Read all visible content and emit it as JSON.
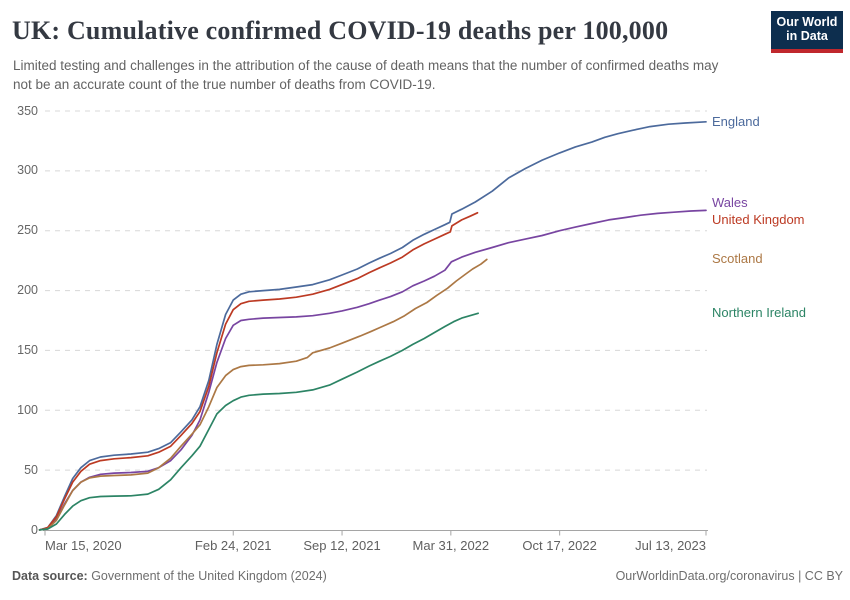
{
  "header": {
    "title": "UK: Cumulative confirmed COVID-19 deaths per 100,000",
    "subtitle": "Limited testing and challenges in the attribution of the cause of death means that the number of confirmed deaths may not be an accurate count of the true number of deaths from COVID-19.",
    "logo": {
      "line1": "Our World",
      "line2": "in Data"
    }
  },
  "footer": {
    "source_label": "Data source:",
    "source_value": " Government of the United Kingdom (2024)",
    "link": "OurWorldinData.org/coronavirus",
    "separator": " | ",
    "license": "CC BY"
  },
  "colors": {
    "logo_bg": "#0d2e4e",
    "logo_bar": "#c0282d",
    "grid": "#d8d8d8",
    "axis": "#a5a5a5",
    "tick_text": "#666666"
  },
  "chart_data": {
    "type": "line",
    "title": "UK: Cumulative confirmed COVID-19 deaths per 100,000",
    "xlabel": "",
    "ylabel": "",
    "ylim": [
      0,
      350
    ],
    "yticks": [
      0,
      50,
      100,
      150,
      200,
      250,
      300,
      350
    ],
    "grid": "horizontal-dashed",
    "legend_position": "right-end-labels",
    "x_range": [
      "2020-03-15",
      "2023-07-13"
    ],
    "xticks": [
      {
        "date": "2020-03-15",
        "label": "Mar 15, 2020"
      },
      {
        "date": "2021-02-24",
        "label": "Feb 24, 2021"
      },
      {
        "date": "2021-09-12",
        "label": "Sep 12, 2021"
      },
      {
        "date": "2022-03-31",
        "label": "Mar 31, 2022"
      },
      {
        "date": "2022-10-17",
        "label": "Oct 17, 2022"
      },
      {
        "date": "2023-07-13",
        "label": "Jul 13, 2023"
      }
    ],
    "series": [
      {
        "name": "England",
        "color": "#4C6A9C",
        "points": [
          [
            "2020-03-05",
            0.1
          ],
          [
            "2020-03-20",
            2
          ],
          [
            "2020-04-05",
            12
          ],
          [
            "2020-04-20",
            28
          ],
          [
            "2020-05-05",
            43
          ],
          [
            "2020-05-20",
            52
          ],
          [
            "2020-06-05",
            58
          ],
          [
            "2020-06-25",
            61
          ],
          [
            "2020-07-20",
            62.5
          ],
          [
            "2020-08-20",
            63.5
          ],
          [
            "2020-09-20",
            65
          ],
          [
            "2020-10-10",
            68
          ],
          [
            "2020-11-01",
            73
          ],
          [
            "2020-11-20",
            82
          ],
          [
            "2020-12-10",
            92
          ],
          [
            "2020-12-25",
            103
          ],
          [
            "2021-01-10",
            125
          ],
          [
            "2021-01-25",
            155
          ],
          [
            "2021-02-10",
            180
          ],
          [
            "2021-02-24",
            192
          ],
          [
            "2021-03-10",
            197
          ],
          [
            "2021-03-25",
            199
          ],
          [
            "2021-04-20",
            200
          ],
          [
            "2021-05-20",
            201
          ],
          [
            "2021-06-20",
            203
          ],
          [
            "2021-07-20",
            205
          ],
          [
            "2021-08-20",
            209
          ],
          [
            "2021-09-12",
            213
          ],
          [
            "2021-10-10",
            218
          ],
          [
            "2021-11-01",
            223
          ],
          [
            "2021-11-20",
            227
          ],
          [
            "2021-12-10",
            231
          ],
          [
            "2022-01-01",
            236
          ],
          [
            "2022-01-20",
            242
          ],
          [
            "2022-02-10",
            247
          ],
          [
            "2022-03-01",
            251
          ],
          [
            "2022-03-20",
            255
          ],
          [
            "2022-03-29",
            257
          ],
          [
            "2022-04-02",
            264
          ],
          [
            "2022-04-20",
            268
          ],
          [
            "2022-05-15",
            274
          ],
          [
            "2022-06-15",
            283
          ],
          [
            "2022-07-15",
            294
          ],
          [
            "2022-08-15",
            302
          ],
          [
            "2022-09-15",
            309
          ],
          [
            "2022-10-17",
            315
          ],
          [
            "2022-11-15",
            320
          ],
          [
            "2022-12-15",
            324
          ],
          [
            "2023-01-08",
            328
          ],
          [
            "2023-02-01",
            331
          ],
          [
            "2023-03-01",
            334
          ],
          [
            "2023-04-01",
            337
          ],
          [
            "2023-05-05",
            339
          ],
          [
            "2023-06-05",
            340
          ],
          [
            "2023-07-13",
            341
          ]
        ]
      },
      {
        "name": "Wales",
        "color": "#7845A1",
        "points": [
          [
            "2020-03-05",
            0.1
          ],
          [
            "2020-03-20",
            1.5
          ],
          [
            "2020-04-05",
            9
          ],
          [
            "2020-04-20",
            22
          ],
          [
            "2020-05-05",
            33
          ],
          [
            "2020-05-20",
            40
          ],
          [
            "2020-06-05",
            44
          ],
          [
            "2020-06-25",
            46.5
          ],
          [
            "2020-07-20",
            47.5
          ],
          [
            "2020-08-20",
            48
          ],
          [
            "2020-09-20",
            49
          ],
          [
            "2020-10-10",
            52
          ],
          [
            "2020-11-01",
            58
          ],
          [
            "2020-11-20",
            67
          ],
          [
            "2020-12-10",
            79
          ],
          [
            "2020-12-25",
            92
          ],
          [
            "2021-01-10",
            115
          ],
          [
            "2021-01-25",
            140
          ],
          [
            "2021-02-10",
            160
          ],
          [
            "2021-02-24",
            171
          ],
          [
            "2021-03-10",
            175
          ],
          [
            "2021-03-25",
            176
          ],
          [
            "2021-04-20",
            177
          ],
          [
            "2021-05-20",
            177.5
          ],
          [
            "2021-06-20",
            178
          ],
          [
            "2021-07-20",
            179
          ],
          [
            "2021-08-20",
            181
          ],
          [
            "2021-09-12",
            183
          ],
          [
            "2021-10-10",
            186
          ],
          [
            "2021-11-01",
            189
          ],
          [
            "2021-11-20",
            192
          ],
          [
            "2021-12-10",
            195
          ],
          [
            "2022-01-01",
            199
          ],
          [
            "2022-01-20",
            204
          ],
          [
            "2022-02-10",
            208
          ],
          [
            "2022-03-01",
            212
          ],
          [
            "2022-03-20",
            217
          ],
          [
            "2022-04-01",
            224
          ],
          [
            "2022-04-20",
            228
          ],
          [
            "2022-05-15",
            232
          ],
          [
            "2022-06-15",
            236
          ],
          [
            "2022-07-15",
            240
          ],
          [
            "2022-08-15",
            243
          ],
          [
            "2022-09-15",
            246
          ],
          [
            "2022-10-17",
            250
          ],
          [
            "2022-11-15",
            253
          ],
          [
            "2022-12-15",
            256
          ],
          [
            "2023-01-15",
            259
          ],
          [
            "2023-02-15",
            261
          ],
          [
            "2023-03-15",
            263
          ],
          [
            "2023-04-15",
            264.5
          ],
          [
            "2023-05-15",
            265.5
          ],
          [
            "2023-06-15",
            266.5
          ],
          [
            "2023-07-13",
            267
          ]
        ]
      },
      {
        "name": "United Kingdom",
        "color": "#BC3A23",
        "points": [
          [
            "2020-03-05",
            0.1
          ],
          [
            "2020-03-20",
            2
          ],
          [
            "2020-04-05",
            11
          ],
          [
            "2020-04-20",
            26
          ],
          [
            "2020-05-05",
            40
          ],
          [
            "2020-05-20",
            49
          ],
          [
            "2020-06-05",
            55
          ],
          [
            "2020-06-25",
            58
          ],
          [
            "2020-07-20",
            59.5
          ],
          [
            "2020-08-20",
            60.5
          ],
          [
            "2020-09-20",
            62
          ],
          [
            "2020-10-10",
            65
          ],
          [
            "2020-11-01",
            70
          ],
          [
            "2020-11-20",
            79
          ],
          [
            "2020-12-10",
            89
          ],
          [
            "2020-12-25",
            99
          ],
          [
            "2021-01-10",
            120
          ],
          [
            "2021-01-25",
            148
          ],
          [
            "2021-02-10",
            172
          ],
          [
            "2021-02-24",
            184
          ],
          [
            "2021-03-10",
            189
          ],
          [
            "2021-03-25",
            191
          ],
          [
            "2021-04-20",
            192
          ],
          [
            "2021-05-20",
            193
          ],
          [
            "2021-06-20",
            194.5
          ],
          [
            "2021-07-20",
            197
          ],
          [
            "2021-08-20",
            201
          ],
          [
            "2021-09-12",
            205
          ],
          [
            "2021-10-10",
            210
          ],
          [
            "2021-11-01",
            215
          ],
          [
            "2021-11-20",
            219
          ],
          [
            "2021-12-10",
            223
          ],
          [
            "2022-01-01",
            228
          ],
          [
            "2022-01-20",
            234
          ],
          [
            "2022-02-10",
            239
          ],
          [
            "2022-03-01",
            243
          ],
          [
            "2022-03-20",
            247
          ],
          [
            "2022-03-30",
            249
          ],
          [
            "2022-04-02",
            254
          ],
          [
            "2022-04-20",
            259
          ],
          [
            "2022-05-05",
            262
          ],
          [
            "2022-05-19",
            265
          ]
        ]
      },
      {
        "name": "Scotland",
        "color": "#AC7845",
        "points": [
          [
            "2020-03-05",
            0.1
          ],
          [
            "2020-03-20",
            1
          ],
          [
            "2020-04-05",
            8
          ],
          [
            "2020-04-20",
            21
          ],
          [
            "2020-05-05",
            33
          ],
          [
            "2020-05-20",
            40
          ],
          [
            "2020-06-05",
            43.5
          ],
          [
            "2020-06-25",
            45
          ],
          [
            "2020-07-20",
            45.5
          ],
          [
            "2020-08-20",
            46
          ],
          [
            "2020-09-20",
            47.5
          ],
          [
            "2020-10-10",
            52
          ],
          [
            "2020-11-01",
            60
          ],
          [
            "2020-11-20",
            70
          ],
          [
            "2020-12-10",
            80
          ],
          [
            "2020-12-25",
            88
          ],
          [
            "2021-01-10",
            103
          ],
          [
            "2021-01-25",
            119
          ],
          [
            "2021-02-10",
            129
          ],
          [
            "2021-02-24",
            134
          ],
          [
            "2021-03-10",
            136.5
          ],
          [
            "2021-03-25",
            137.5
          ],
          [
            "2021-04-20",
            138
          ],
          [
            "2021-05-20",
            139
          ],
          [
            "2021-06-20",
            141
          ],
          [
            "2021-07-10",
            144
          ],
          [
            "2021-07-20",
            148
          ],
          [
            "2021-08-20",
            152
          ],
          [
            "2021-09-12",
            156
          ],
          [
            "2021-10-15",
            162
          ],
          [
            "2021-11-05",
            166
          ],
          [
            "2021-11-25",
            170
          ],
          [
            "2021-12-15",
            174
          ],
          [
            "2022-01-05",
            179
          ],
          [
            "2022-01-25",
            185
          ],
          [
            "2022-02-15",
            190
          ],
          [
            "2022-03-05",
            196
          ],
          [
            "2022-03-25",
            202
          ],
          [
            "2022-04-10",
            208
          ],
          [
            "2022-04-25",
            213
          ],
          [
            "2022-05-10",
            218
          ],
          [
            "2022-05-25",
            222
          ],
          [
            "2022-06-05",
            226
          ]
        ]
      },
      {
        "name": "Northern Ireland",
        "color": "#2C8465",
        "points": [
          [
            "2020-03-05",
            0.1
          ],
          [
            "2020-03-20",
            0.8
          ],
          [
            "2020-04-05",
            5
          ],
          [
            "2020-04-20",
            13
          ],
          [
            "2020-05-05",
            20
          ],
          [
            "2020-05-20",
            24.5
          ],
          [
            "2020-06-05",
            27
          ],
          [
            "2020-06-25",
            28
          ],
          [
            "2020-07-20",
            28.3
          ],
          [
            "2020-08-20",
            28.6
          ],
          [
            "2020-09-20",
            30
          ],
          [
            "2020-10-10",
            34
          ],
          [
            "2020-11-01",
            42
          ],
          [
            "2020-11-20",
            52
          ],
          [
            "2020-12-10",
            62
          ],
          [
            "2020-12-25",
            70
          ],
          [
            "2021-01-10",
            84
          ],
          [
            "2021-01-25",
            97
          ],
          [
            "2021-02-10",
            104
          ],
          [
            "2021-02-24",
            108
          ],
          [
            "2021-03-10",
            111
          ],
          [
            "2021-03-25",
            112.5
          ],
          [
            "2021-04-20",
            113.5
          ],
          [
            "2021-05-20",
            114
          ],
          [
            "2021-06-20",
            115
          ],
          [
            "2021-07-20",
            117
          ],
          [
            "2021-08-20",
            121
          ],
          [
            "2021-09-12",
            126
          ],
          [
            "2021-10-10",
            132
          ],
          [
            "2021-11-01",
            137
          ],
          [
            "2021-11-20",
            141
          ],
          [
            "2021-12-10",
            145
          ],
          [
            "2022-01-01",
            150
          ],
          [
            "2022-01-20",
            155
          ],
          [
            "2022-02-10",
            160
          ],
          [
            "2022-03-01",
            165
          ],
          [
            "2022-03-20",
            170
          ],
          [
            "2022-04-05",
            174
          ],
          [
            "2022-04-20",
            177
          ],
          [
            "2022-05-20",
            181
          ]
        ]
      }
    ]
  }
}
